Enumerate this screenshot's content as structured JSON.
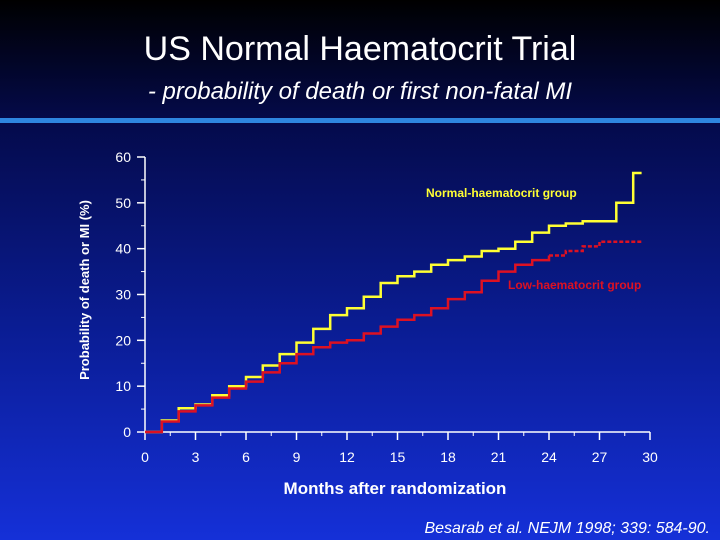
{
  "slide": {
    "title": "US Normal Haematocrit Trial",
    "subtitle": "-  probability of death or first non-fatal MI",
    "citation": "Besarab et al. NEJM 1998; 339: 584-90."
  },
  "colors": {
    "normal_series": "#ffff33",
    "low_series": "#dd1122",
    "rule": "#2e86e0",
    "axis": "#ffffff"
  },
  "chart_data": {
    "type": "line",
    "xlabel": "Months after randomization",
    "ylabel": "Probability of death or MI (%)",
    "xlim": [
      0,
      30
    ],
    "ylim": [
      0,
      60
    ],
    "x_ticks": [
      0,
      3,
      6,
      9,
      12,
      15,
      18,
      21,
      24,
      27,
      30
    ],
    "y_ticks": [
      0,
      10,
      20,
      30,
      40,
      50,
      60
    ],
    "grid": false,
    "series": [
      {
        "name": "Normal-haematocrit group",
        "color": "#ffff33",
        "step": true,
        "x": [
          0,
          1,
          2,
          3,
          4,
          5,
          6,
          7,
          8,
          9,
          10,
          11,
          12,
          13,
          14,
          15,
          16,
          17,
          18,
          19,
          20,
          21,
          22,
          23,
          24,
          25,
          26,
          27,
          28,
          29,
          29.5
        ],
        "y": [
          0,
          2.5,
          5.2,
          6,
          8,
          10,
          12,
          14.5,
          17,
          19.5,
          22.5,
          25.5,
          27,
          29.5,
          32.5,
          34,
          35,
          36.5,
          37.5,
          38.3,
          39.5,
          40,
          41.5,
          43.5,
          45,
          45.5,
          46,
          46,
          50,
          56.5,
          56.5
        ]
      },
      {
        "name": "Low-haematocrit group",
        "color": "#dd1122",
        "step": true,
        "dashed_from_x": 24.8,
        "x": [
          0,
          1,
          2,
          3,
          4,
          5,
          6,
          7,
          8,
          9,
          10,
          11,
          12,
          13,
          14,
          15,
          16,
          17,
          18,
          19,
          20,
          21,
          22,
          23,
          24,
          25,
          26,
          27,
          28,
          29.5
        ],
        "y": [
          0,
          2.3,
          4.5,
          5.8,
          7.5,
          9.5,
          11,
          13,
          15,
          17,
          18.5,
          19.5,
          20,
          21.5,
          23,
          24.5,
          25.5,
          27,
          29,
          30.5,
          33,
          35,
          36.5,
          37.5,
          38.5,
          39.5,
          40.5,
          41.5,
          41.5,
          41.5
        ]
      }
    ],
    "annotations": [
      {
        "text": "Normal-haematocrit group",
        "series": 0
      },
      {
        "text": "Low-haematocrit group",
        "series": 1
      }
    ]
  }
}
